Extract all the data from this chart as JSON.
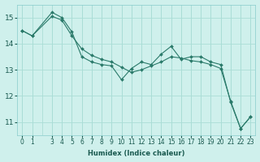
{
  "xlabel": "Humidex (Indice chaleur)",
  "x_values": [
    0,
    1,
    3,
    4,
    5,
    6,
    7,
    8,
    9,
    10,
    11,
    12,
    13,
    14,
    15,
    16,
    17,
    18,
    19,
    20,
    21,
    22,
    23
  ],
  "y_jagged": [
    14.5,
    14.3,
    15.2,
    15.0,
    14.45,
    13.5,
    13.3,
    13.2,
    13.15,
    12.62,
    13.05,
    13.3,
    13.2,
    13.6,
    13.9,
    13.4,
    13.5,
    13.5,
    13.3,
    13.2,
    11.75,
    10.75,
    11.2
  ],
  "y_straight": [
    14.5,
    14.3,
    15.05,
    14.9,
    14.3,
    13.8,
    13.55,
    13.4,
    13.3,
    13.1,
    12.9,
    13.0,
    13.15,
    13.3,
    13.5,
    13.45,
    13.35,
    13.3,
    13.2,
    13.05,
    11.8,
    10.75,
    11.2
  ],
  "line_color": "#2a7a6a",
  "bg_color": "#cff0ec",
  "grid_color": "#aaddd6",
  "ylim": [
    10.5,
    15.5
  ],
  "xlim": [
    -0.5,
    23.5
  ],
  "yticks": [
    11,
    12,
    13,
    14,
    15
  ],
  "xticks": [
    0,
    1,
    3,
    4,
    5,
    6,
    7,
    8,
    9,
    10,
    11,
    12,
    13,
    14,
    15,
    16,
    17,
    18,
    19,
    20,
    21,
    22,
    23
  ],
  "tick_fontsize": 5.5,
  "xlabel_fontsize": 6.0,
  "ytick_fontsize": 6.5
}
